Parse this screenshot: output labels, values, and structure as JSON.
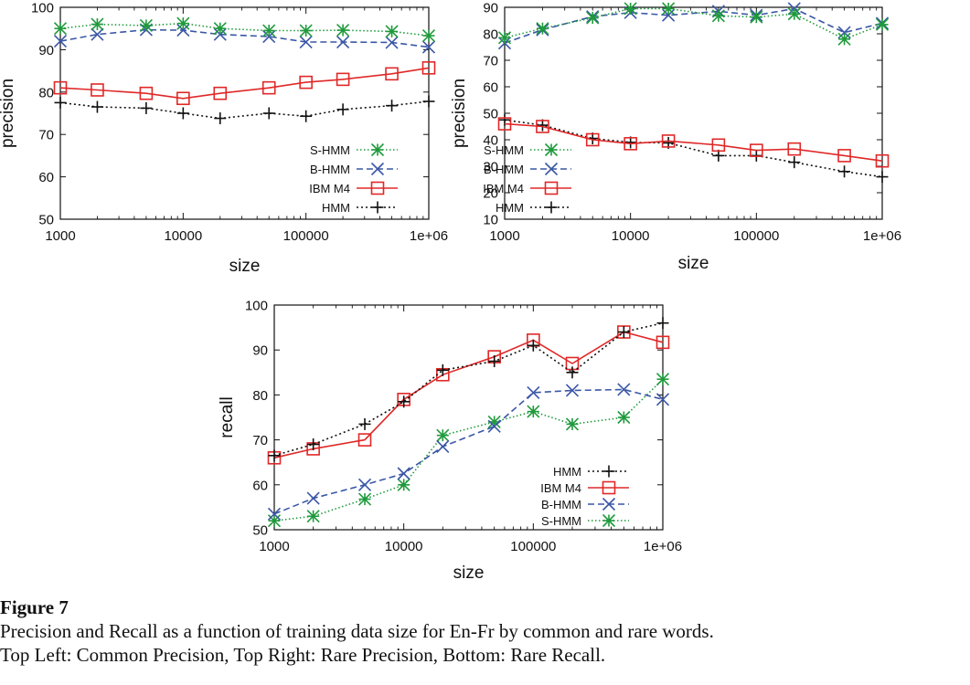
{
  "chart_data": [
    {
      "type": "line",
      "xscale": "log",
      "x": [
        1000,
        2000,
        5000,
        10000,
        20000,
        50000,
        100000,
        200000,
        500000,
        1000000
      ],
      "xticks": [
        "1000",
        "10000",
        "100000",
        "1e+06"
      ],
      "xlabel": "size",
      "ylabel": "precision",
      "ylim": [
        50,
        100
      ],
      "yticks": [
        "50",
        "60",
        "70",
        "80",
        "90",
        "100"
      ],
      "legend_position": "bottom-right",
      "series": [
        {
          "name": "S-HMM",
          "values": [
            95,
            96,
            95.7,
            96.2,
            95,
            94.5,
            94.5,
            94.6,
            94.3,
            93.3
          ]
        },
        {
          "name": "B-HMM",
          "values": [
            92,
            93.6,
            94.7,
            94.6,
            93.6,
            93.1,
            91.8,
            91.8,
            91.7,
            90.6
          ]
        },
        {
          "name": "IBM M4",
          "values": [
            81,
            80.5,
            79.7,
            78.5,
            79.7,
            81,
            82.3,
            83,
            84.3,
            85.7
          ]
        },
        {
          "name": "HMM",
          "values": [
            77.5,
            76.5,
            76.2,
            75,
            73.8,
            75,
            74.3,
            75.9,
            76.8,
            77.8
          ]
        }
      ]
    },
    {
      "type": "line",
      "xscale": "log",
      "x": [
        1000,
        2000,
        5000,
        10000,
        20000,
        50000,
        100000,
        200000,
        500000,
        1000000
      ],
      "xticks": [
        "1000",
        "10000",
        "100000",
        "1e+06"
      ],
      "xlabel": "size",
      "ylabel": "precision",
      "ylim": [
        10,
        90
      ],
      "yticks": [
        "10",
        "20",
        "30",
        "40",
        "50",
        "60",
        "70",
        "80",
        "90"
      ],
      "legend_position": "middle-left",
      "series": [
        {
          "name": "S-HMM",
          "values": [
            78.5,
            82,
            86,
            89.5,
            89.5,
            86.8,
            86.3,
            87.5,
            78,
            83.5
          ]
        },
        {
          "name": "B-HMM",
          "values": [
            76.5,
            81.5,
            86.5,
            88,
            87,
            88.5,
            87,
            89.5,
            80.5,
            84
          ]
        },
        {
          "name": "IBM M4",
          "values": [
            46,
            45,
            40,
            38.5,
            39.5,
            38,
            36,
            36.5,
            34,
            32
          ]
        },
        {
          "name": "HMM",
          "values": [
            47.5,
            45.5,
            40.5,
            39,
            38.8,
            34,
            34,
            31.5,
            28,
            26
          ]
        }
      ]
    },
    {
      "type": "line",
      "xscale": "log",
      "x": [
        1000,
        2000,
        5000,
        10000,
        20000,
        50000,
        100000,
        200000,
        500000,
        1000000
      ],
      "xticks": [
        "1000",
        "10000",
        "100000",
        "1e+06"
      ],
      "xlabel": "size",
      "ylabel": "recall",
      "ylim": [
        50,
        100
      ],
      "yticks": [
        "50",
        "60",
        "70",
        "80",
        "90",
        "100"
      ],
      "legend_position": "bottom-right",
      "series": [
        {
          "name": "HMM",
          "values": [
            66.5,
            69,
            73.5,
            78.5,
            85.5,
            87.5,
            91,
            85,
            94,
            96
          ]
        },
        {
          "name": "IBM M4",
          "values": [
            66,
            68,
            70,
            79,
            84.5,
            88.5,
            92.2,
            87,
            94,
            91.7
          ]
        },
        {
          "name": "B-HMM",
          "values": [
            53.5,
            57,
            60,
            62.5,
            68.5,
            73,
            80.5,
            81,
            81.2,
            79
          ]
        },
        {
          "name": "S-HMM",
          "values": [
            52,
            53,
            56.8,
            60,
            71,
            74,
            76.3,
            73.5,
            75,
            83.5
          ]
        }
      ]
    }
  ],
  "styles": {
    "S-HMM": {
      "color": "#1f9a3c",
      "dash": "1.5,2.5",
      "marker": "star"
    },
    "B-HMM": {
      "color": "#3a56a6",
      "dash": "7,4",
      "marker": "cross"
    },
    "IBM M4": {
      "color": "#e02828",
      "dash": "",
      "marker": "square"
    },
    "HMM": {
      "color": "#111111",
      "dash": "2,3",
      "marker": "plus"
    }
  },
  "caption": {
    "title": "Figure 7",
    "line1": "Precision and Recall as a function of training data size for En-Fr by common and rare words.",
    "line2": "Top Left: Common Precision, Top Right: Rare Precision, Bottom: Rare Recall."
  }
}
